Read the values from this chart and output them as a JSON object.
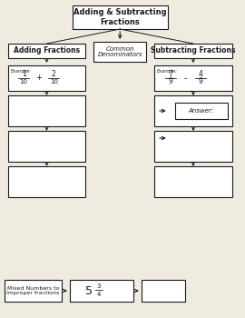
{
  "title": "Adding & Subtracting\nFractions",
  "common_denom_label": "Common\nDenominators",
  "left_col_label": "Adding Fractions",
  "right_col_label": "Subtracting Fractions",
  "answer_label": "Answer:",
  "bottom_left_label": "Mixed Numbers to\nImproper fractions",
  "bg_color": "#f0ebe0",
  "box_color": "#ffffff",
  "border_color": "#1a1a1a",
  "text_color": "#1a1a1a"
}
